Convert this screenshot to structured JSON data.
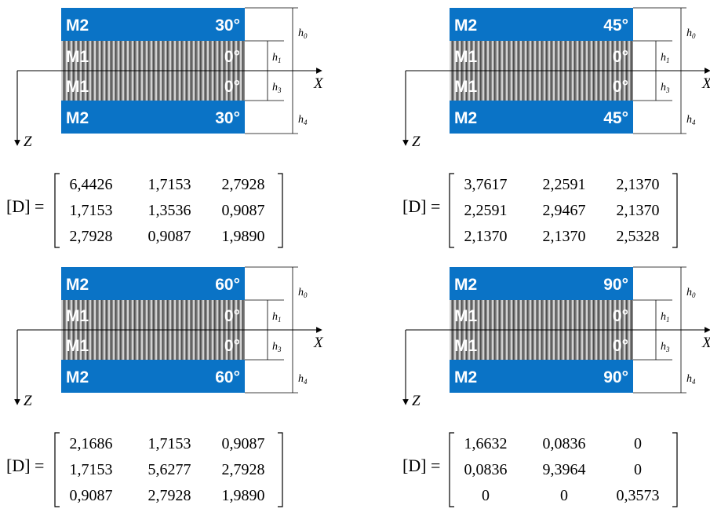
{
  "colors": {
    "blue": "#0a73c6",
    "fiber_light": "#c9c9c9",
    "fiber_dark": "#5a5a5a"
  },
  "axes": {
    "x": "X",
    "z": "Z"
  },
  "thickness_labels": {
    "top": "h",
    "top_sub": "0",
    "mid1": "h",
    "mid1_sub": "1",
    "mid2": "h",
    "mid2_sub": "3",
    "bottom": "h",
    "bottom_sub": "4"
  },
  "matrix_label": "[D] =",
  "panels": [
    {
      "layers": [
        {
          "material": "M2",
          "angle": "30°"
        },
        {
          "material": "M1",
          "angle": "0°"
        },
        {
          "material": "M1",
          "angle": "0°"
        },
        {
          "material": "M2",
          "angle": "30°"
        }
      ],
      "matrix": [
        [
          "6,4426",
          "1,7153",
          "2,7928"
        ],
        [
          "1,7153",
          "1,3536",
          "0,9087"
        ],
        [
          "2,7928",
          "0,9087",
          "1,9890"
        ]
      ]
    },
    {
      "layers": [
        {
          "material": "M2",
          "angle": "45°"
        },
        {
          "material": "M1",
          "angle": "0°"
        },
        {
          "material": "M1",
          "angle": "0°"
        },
        {
          "material": "M2",
          "angle": "45°"
        }
      ],
      "matrix": [
        [
          "3,7617",
          "2,2591",
          "2,1370"
        ],
        [
          "2,2591",
          "2,9467",
          "2,1370"
        ],
        [
          "2,1370",
          "2,1370",
          "2,5328"
        ]
      ]
    },
    {
      "layers": [
        {
          "material": "M2",
          "angle": "60°"
        },
        {
          "material": "M1",
          "angle": "0°"
        },
        {
          "material": "M1",
          "angle": "0°"
        },
        {
          "material": "M2",
          "angle": "60°"
        }
      ],
      "matrix": [
        [
          "2,1686",
          "1,7153",
          "0,9087"
        ],
        [
          "1,7153",
          "5,6277",
          "2,7928"
        ],
        [
          "0,9087",
          "2,7928",
          "1,9890"
        ]
      ]
    },
    {
      "layers": [
        {
          "material": "M2",
          "angle": "90°"
        },
        {
          "material": "M1",
          "angle": "0°"
        },
        {
          "material": "M1",
          "angle": "0°"
        },
        {
          "material": "M2",
          "angle": "90°"
        }
      ],
      "matrix": [
        [
          "1,6632",
          "0,0836",
          "0"
        ],
        [
          "0,0836",
          "9,3964",
          "0"
        ],
        [
          "0",
          "0",
          "0,3573"
        ]
      ]
    }
  ]
}
